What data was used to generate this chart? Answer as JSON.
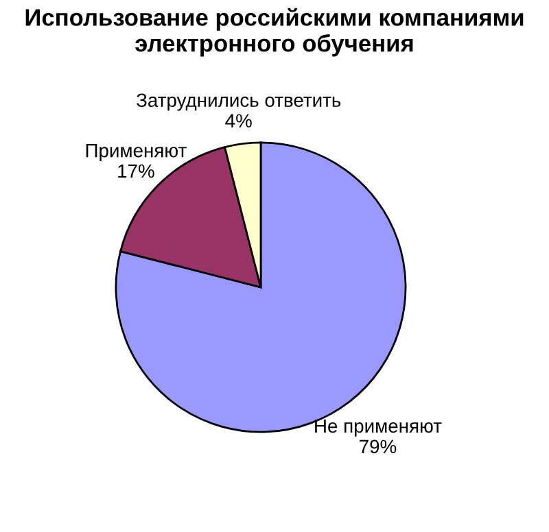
{
  "chart_data": {
    "type": "pie",
    "title": "Использование российскими компаниями\nэлектронного обучения",
    "categories": [
      "Не применяют",
      "Применяют",
      "Затруднились ответить"
    ],
    "values": [
      79,
      17,
      4
    ],
    "value_labels": [
      "79%",
      "17%",
      "4%"
    ],
    "colors": [
      "#9999ff",
      "#993366",
      "#ffffcc"
    ]
  }
}
